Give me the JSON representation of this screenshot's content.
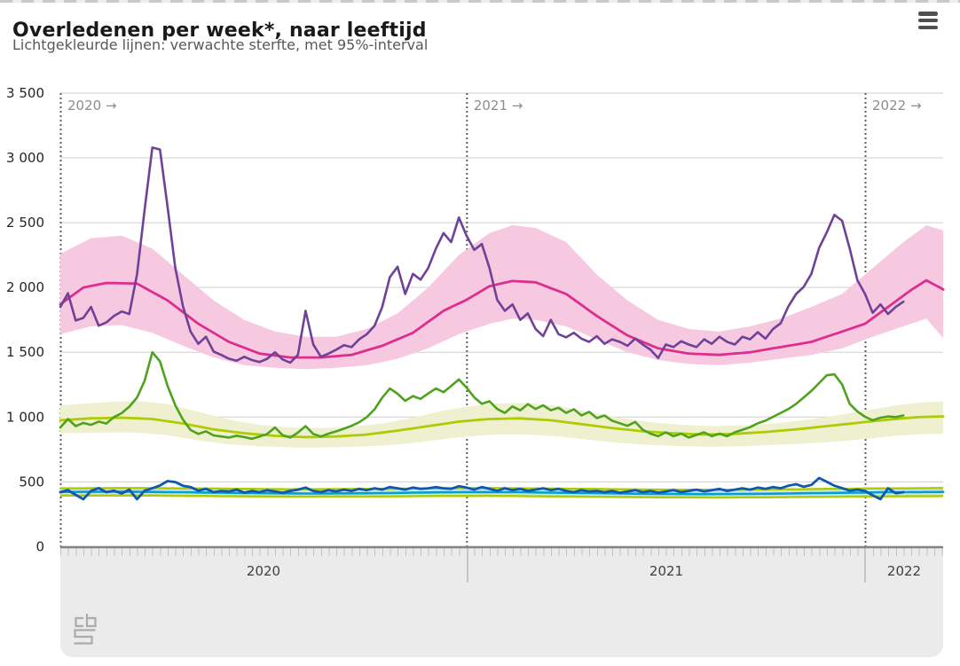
{
  "page": {
    "title": "Overledenen per week*, naar leeftijd",
    "subtitle": "Lichtgekleurde lijnen: verwachte sterfte, met 95%-interval",
    "menu_icon": "hamburger-icon",
    "logo_icon": "cbs-logo"
  },
  "chart_data": {
    "type": "line",
    "title": "Overledenen per week*, naar leeftijd",
    "subtitle": "Lichtgekleurde lijnen: verwachte sterfte, met 95%-interval",
    "grid": true,
    "legend": "none",
    "ylim": [
      0,
      3500
    ],
    "yticks": [
      {
        "v": 3500,
        "label": "3 500"
      },
      {
        "v": 3000,
        "label": "3 000"
      },
      {
        "v": 2500,
        "label": "2 500"
      },
      {
        "v": 2000,
        "label": "2 000"
      },
      {
        "v": 1500,
        "label": "1 500"
      },
      {
        "v": 1000,
        "label": "1 000"
      },
      {
        "v": 500,
        "label": "500"
      },
      {
        "v": 0,
        "label": "0"
      }
    ],
    "x_unit": "week",
    "year_markers": [
      {
        "week": 0,
        "label": "2020 →"
      },
      {
        "week": 53,
        "label": "2021 →"
      },
      {
        "week": 105,
        "label": "2022 →"
      }
    ],
    "axis_years": [
      {
        "label": "2020",
        "start_week": 0,
        "end_week": 53
      },
      {
        "label": "2021",
        "start_week": 53,
        "end_week": 105
      },
      {
        "label": "2022",
        "start_week": 105,
        "end_week": 115.2
      }
    ],
    "series": [
      {
        "name": "interval-band-pink",
        "kind": "band",
        "color": "#f6c9e0",
        "control_points": [
          [
            0,
            2260,
            1640
          ],
          [
            4,
            2380,
            1700
          ],
          [
            8,
            2400,
            1710
          ],
          [
            12,
            2300,
            1650
          ],
          [
            16,
            2100,
            1550
          ],
          [
            20,
            1900,
            1460
          ],
          [
            24,
            1750,
            1400
          ],
          [
            28,
            1660,
            1380
          ],
          [
            32,
            1620,
            1370
          ],
          [
            36,
            1620,
            1380
          ],
          [
            40,
            1680,
            1400
          ],
          [
            44,
            1800,
            1450
          ],
          [
            48,
            2000,
            1530
          ],
          [
            52,
            2250,
            1640
          ],
          [
            56,
            2420,
            1720
          ],
          [
            59,
            2480,
            1760
          ],
          [
            62,
            2460,
            1750
          ],
          [
            66,
            2350,
            1700
          ],
          [
            70,
            2100,
            1600
          ],
          [
            74,
            1900,
            1500
          ],
          [
            78,
            1750,
            1440
          ],
          [
            82,
            1680,
            1410
          ],
          [
            86,
            1660,
            1400
          ],
          [
            90,
            1700,
            1420
          ],
          [
            94,
            1760,
            1450
          ],
          [
            98,
            1850,
            1480
          ],
          [
            102,
            1950,
            1530
          ],
          [
            106,
            2150,
            1620
          ],
          [
            110,
            2350,
            1700
          ],
          [
            113,
            2480,
            1760
          ],
          [
            115.2,
            2440,
            1610
          ]
        ]
      },
      {
        "name": "interval-band-yellowgreen",
        "kind": "band",
        "color": "#eff0d0",
        "control_points": [
          [
            0,
            1090,
            875
          ],
          [
            6,
            1115,
            880
          ],
          [
            10,
            1125,
            880
          ],
          [
            14,
            1100,
            860
          ],
          [
            18,
            1040,
            820
          ],
          [
            22,
            980,
            790
          ],
          [
            26,
            940,
            775
          ],
          [
            30,
            920,
            765
          ],
          [
            34,
            915,
            765
          ],
          [
            38,
            925,
            770
          ],
          [
            42,
            950,
            780
          ],
          [
            46,
            995,
            800
          ],
          [
            50,
            1050,
            830
          ],
          [
            53,
            1080,
            850
          ],
          [
            57,
            1105,
            865
          ],
          [
            61,
            1110,
            865
          ],
          [
            65,
            1085,
            850
          ],
          [
            69,
            1040,
            825
          ],
          [
            73,
            995,
            800
          ],
          [
            77,
            960,
            785
          ],
          [
            81,
            940,
            775
          ],
          [
            85,
            930,
            770
          ],
          [
            89,
            935,
            775
          ],
          [
            93,
            950,
            785
          ],
          [
            97,
            975,
            795
          ],
          [
            101,
            1010,
            810
          ],
          [
            105,
            1050,
            830
          ],
          [
            109,
            1090,
            855
          ],
          [
            113,
            1115,
            870
          ],
          [
            115.2,
            1120,
            870
          ]
        ]
      },
      {
        "name": "interval-band-lightblue",
        "kind": "band",
        "color": "#c9e7f3",
        "edge_color": "#afcb05",
        "control_points": [
          [
            0,
            450,
            394
          ],
          [
            10,
            452,
            395
          ],
          [
            20,
            448,
            390
          ],
          [
            30,
            443,
            386
          ],
          [
            40,
            445,
            387
          ],
          [
            50,
            450,
            391
          ],
          [
            56,
            452,
            392
          ],
          [
            66,
            447,
            387
          ],
          [
            76,
            441,
            382
          ],
          [
            86,
            438,
            379
          ],
          [
            96,
            443,
            383
          ],
          [
            106,
            449,
            388
          ],
          [
            115.2,
            452,
            390
          ]
        ]
      },
      {
        "name": "expected-line-magenta",
        "kind": "expected",
        "color": "#dd2e8f",
        "width": 2.8,
        "control_points": [
          [
            0,
            1870
          ],
          [
            3,
            2000
          ],
          [
            6,
            2035
          ],
          [
            10,
            2030
          ],
          [
            14,
            1900
          ],
          [
            18,
            1720
          ],
          [
            22,
            1580
          ],
          [
            26,
            1490
          ],
          [
            30,
            1460
          ],
          [
            34,
            1460
          ],
          [
            38,
            1480
          ],
          [
            42,
            1550
          ],
          [
            46,
            1650
          ],
          [
            50,
            1820
          ],
          [
            53,
            1905
          ],
          [
            56,
            2010
          ],
          [
            59,
            2050
          ],
          [
            62,
            2040
          ],
          [
            66,
            1950
          ],
          [
            70,
            1780
          ],
          [
            74,
            1630
          ],
          [
            78,
            1530
          ],
          [
            82,
            1490
          ],
          [
            86,
            1480
          ],
          [
            90,
            1500
          ],
          [
            94,
            1540
          ],
          [
            98,
            1580
          ],
          [
            102,
            1660
          ],
          [
            105,
            1720
          ],
          [
            108,
            1850
          ],
          [
            111,
            1980
          ],
          [
            113,
            2055
          ],
          [
            115.2,
            1985
          ]
        ]
      },
      {
        "name": "expected-line-yellowgreen",
        "kind": "expected",
        "color": "#afcb05",
        "width": 2.8,
        "control_points": [
          [
            0,
            975
          ],
          [
            4,
            990
          ],
          [
            8,
            995
          ],
          [
            12,
            985
          ],
          [
            16,
            950
          ],
          [
            20,
            905
          ],
          [
            24,
            875
          ],
          [
            28,
            855
          ],
          [
            32,
            845
          ],
          [
            36,
            850
          ],
          [
            40,
            865
          ],
          [
            44,
            895
          ],
          [
            48,
            930
          ],
          [
            52,
            965
          ],
          [
            56,
            985
          ],
          [
            60,
            990
          ],
          [
            64,
            975
          ],
          [
            68,
            945
          ],
          [
            72,
            915
          ],
          [
            76,
            890
          ],
          [
            80,
            875
          ],
          [
            84,
            865
          ],
          [
            88,
            870
          ],
          [
            92,
            885
          ],
          [
            96,
            905
          ],
          [
            100,
            930
          ],
          [
            104,
            955
          ],
          [
            108,
            980
          ],
          [
            112,
            1000
          ],
          [
            115.2,
            1005
          ]
        ]
      },
      {
        "name": "expected-line-cyan",
        "kind": "expected",
        "color": "#00a1cd",
        "width": 2.6,
        "control_points": [
          [
            0,
            422
          ],
          [
            8,
            424
          ],
          [
            16,
            420
          ],
          [
            24,
            414
          ],
          [
            32,
            410
          ],
          [
            40,
            412
          ],
          [
            48,
            418
          ],
          [
            53,
            421
          ],
          [
            60,
            420
          ],
          [
            68,
            414
          ],
          [
            76,
            408
          ],
          [
            84,
            405
          ],
          [
            92,
            408
          ],
          [
            100,
            414
          ],
          [
            108,
            420
          ],
          [
            115.2,
            422
          ]
        ]
      },
      {
        "name": "actual-line-purple",
        "kind": "actual",
        "color": "#6f4197",
        "width": 2.6,
        "values": [
          1850,
          1955,
          1745,
          1765,
          1850,
          1705,
          1730,
          1780,
          1815,
          1795,
          2100,
          2600,
          3080,
          3065,
          2620,
          2150,
          1855,
          1660,
          1565,
          1620,
          1505,
          1480,
          1450,
          1435,
          1465,
          1440,
          1425,
          1450,
          1500,
          1445,
          1420,
          1480,
          1820,
          1560,
          1465,
          1490,
          1520,
          1555,
          1540,
          1600,
          1640,
          1705,
          1850,
          2080,
          2160,
          1950,
          2105,
          2060,
          2150,
          2300,
          2420,
          2350,
          2540,
          2400,
          2290,
          2335,
          2150,
          1905,
          1820,
          1870,
          1750,
          1800,
          1680,
          1625,
          1750,
          1640,
          1615,
          1650,
          1605,
          1580,
          1625,
          1565,
          1600,
          1580,
          1550,
          1605,
          1560,
          1520,
          1455,
          1560,
          1540,
          1585,
          1560,
          1540,
          1600,
          1565,
          1620,
          1580,
          1560,
          1620,
          1600,
          1655,
          1605,
          1680,
          1725,
          1855,
          1950,
          2005,
          2105,
          2305,
          2425,
          2560,
          2515,
          2300,
          2055,
          1950,
          1805,
          1870,
          1795,
          1850,
          1890
        ]
      },
      {
        "name": "actual-line-green",
        "kind": "actual",
        "color": "#4ea21d",
        "width": 2.6,
        "values": [
          920,
          985,
          930,
          955,
          940,
          965,
          950,
          1000,
          1030,
          1080,
          1150,
          1280,
          1500,
          1430,
          1240,
          1090,
          980,
          900,
          870,
          890,
          858,
          850,
          842,
          856,
          845,
          832,
          850,
          870,
          920,
          860,
          842,
          880,
          930,
          870,
          850,
          872,
          890,
          910,
          932,
          960,
          1000,
          1060,
          1150,
          1220,
          1180,
          1125,
          1162,
          1140,
          1182,
          1220,
          1192,
          1240,
          1290,
          1228,
          1152,
          1102,
          1122,
          1062,
          1032,
          1082,
          1052,
          1100,
          1062,
          1090,
          1052,
          1072,
          1032,
          1060,
          1012,
          1040,
          992,
          1012,
          972,
          952,
          932,
          962,
          902,
          872,
          852,
          882,
          852,
          872,
          842,
          862,
          882,
          852,
          872,
          852,
          882,
          902,
          922,
          952,
          972,
          1002,
          1032,
          1062,
          1102,
          1152,
          1202,
          1262,
          1322,
          1330,
          1252,
          1102,
          1042,
          1002,
          975,
          995,
          1005,
          1000,
          1012
        ]
      },
      {
        "name": "actual-line-blue",
        "kind": "actual",
        "color": "#0e58b0",
        "width": 2.8,
        "values": [
          420,
          436,
          400,
          366,
          430,
          452,
          420,
          432,
          410,
          440,
          366,
          432,
          450,
          472,
          506,
          498,
          470,
          460,
          432,
          446,
          420,
          430,
          426,
          440,
          416,
          430,
          420,
          436,
          426,
          416,
          430,
          440,
          456,
          430,
          420,
          436,
          426,
          440,
          430,
          446,
          436,
          450,
          440,
          460,
          450,
          440,
          456,
          446,
          450,
          460,
          450,
          446,
          466,
          456,
          440,
          460,
          446,
          430,
          450,
          436,
          446,
          430,
          440,
          450,
          436,
          446,
          430,
          420,
          436,
          426,
          430,
          420,
          430,
          416,
          426,
          436,
          420,
          430,
          416,
          426,
          436,
          420,
          430,
          440,
          426,
          436,
          446,
          430,
          440,
          450,
          440,
          456,
          446,
          460,
          450,
          470,
          482,
          462,
          476,
          530,
          500,
          470,
          452,
          432,
          440,
          430,
          396,
          366,
          450,
          412,
          420
        ]
      }
    ]
  }
}
